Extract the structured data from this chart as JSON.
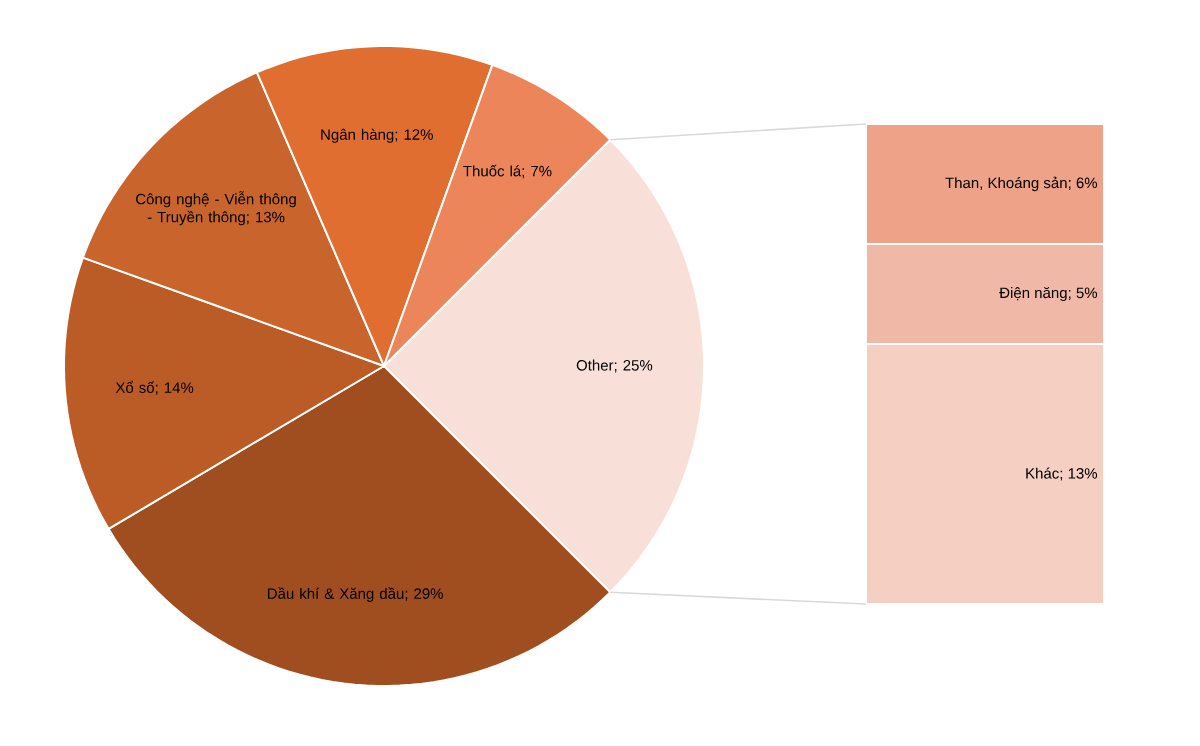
{
  "chart_data": [
    {
      "type": "pie",
      "categories": [
        "Other",
        "Dầu khí & Xăng dầu",
        "Xổ số",
        "Công nghệ - Viễn thông - Truyền thông",
        "Ngân hàng",
        "Thuốc lá"
      ],
      "values": [
        25,
        29,
        14,
        13,
        12,
        7
      ],
      "colors": [
        "#f8e0d8",
        "#a04d20",
        "#bb5b26",
        "#c8642c",
        "#e06e30",
        "#ec865a"
      ],
      "value_labels": [
        "; 25%",
        "; 29%",
        "; 14%",
        "; 13%",
        "; 12%",
        "; 7%"
      ]
    },
    {
      "type": "bar",
      "stacked": true,
      "categories": [
        null
      ],
      "series": [
        {
          "name": "Khác",
          "color": "#f5cfc2",
          "values": [
            13
          ],
          "value_labels": [
            "; 13%"
          ]
        },
        {
          "name": "Điện năng",
          "color": "#f0b8a6",
          "values": [
            5
          ],
          "value_labels": [
            "; 5%"
          ]
        },
        {
          "name": "Than, Khoáng sản",
          "color": "#eea287",
          "values": [
            6
          ],
          "value_labels": [
            "; 6%"
          ]
        }
      ]
    }
  ]
}
